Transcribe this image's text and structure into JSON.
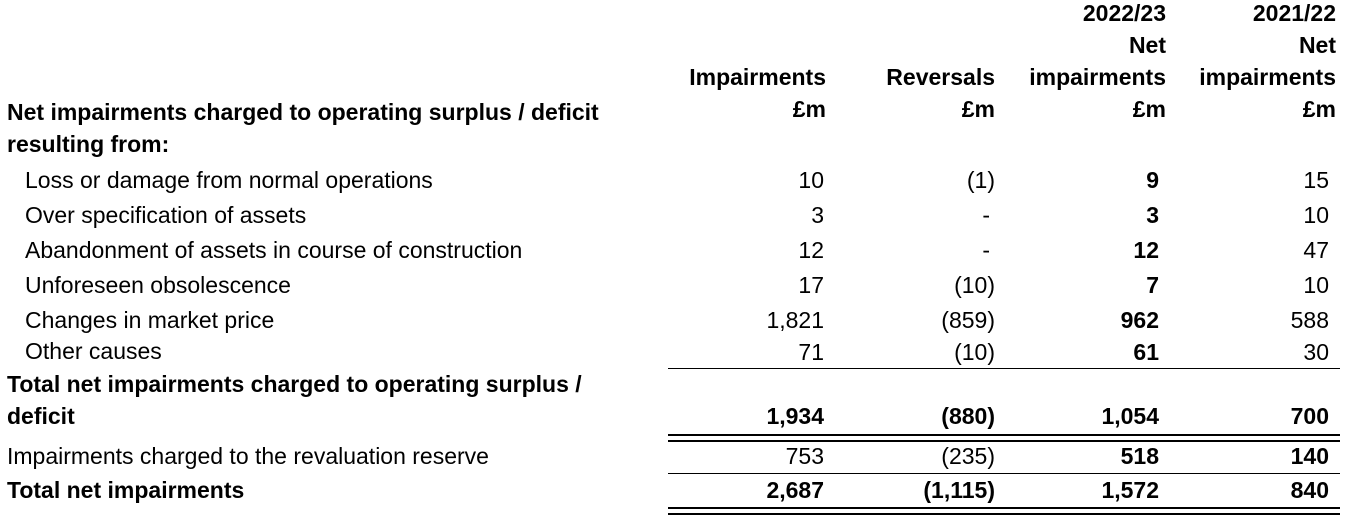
{
  "columns": {
    "impairments": {
      "lines": [
        "Impairments",
        "£m"
      ]
    },
    "reversals": {
      "lines": [
        "Reversals",
        "£m"
      ]
    },
    "net_2022_23": {
      "lines": [
        "2022/23",
        "Net",
        "impairments",
        "£m"
      ]
    },
    "net_2021_22": {
      "lines": [
        "2021/22",
        "Net",
        "impairments",
        "£m"
      ]
    }
  },
  "section_heading": {
    "line1": "Net impairments charged to operating surplus / deficit",
    "line2": "resulting from:"
  },
  "rows": [
    {
      "label": "Loss or damage from normal operations",
      "impairments": "10",
      "reversals": "(1)",
      "net_2022_23": "9",
      "net_2021_22": "15"
    },
    {
      "label": "Over specification of assets",
      "impairments": "3",
      "reversals": "-",
      "net_2022_23": "3",
      "net_2021_22": "10"
    },
    {
      "label": "Abandonment of assets in course of construction",
      "impairments": "12",
      "reversals": "-",
      "net_2022_23": "12",
      "net_2021_22": "47"
    },
    {
      "label": "Unforeseen obsolescence",
      "impairments": "17",
      "reversals": "(10)",
      "net_2022_23": "7",
      "net_2021_22": "10"
    },
    {
      "label": "Changes in market price",
      "impairments": "1,821",
      "reversals": "(859)",
      "net_2022_23": "962",
      "net_2021_22": "588"
    },
    {
      "label": "Other causes",
      "impairments": "71",
      "reversals": "(10)",
      "net_2022_23": "61",
      "net_2021_22": "30"
    }
  ],
  "total_operating": {
    "label_line1": "Total net impairments charged to operating surplus /",
    "label_line2": "deficit",
    "impairments": "1,934",
    "reversals": "(880)",
    "net_2022_23": "1,054",
    "net_2021_22": "700"
  },
  "revaluation": {
    "label": "Impairments charged to the revaluation reserve",
    "impairments": "753",
    "reversals": "(235)",
    "net_2022_23": "518",
    "net_2021_22": "140"
  },
  "total": {
    "label": "Total net impairments",
    "impairments": "2,687",
    "reversals": "(1,115)",
    "net_2022_23": "1,572",
    "net_2021_22": "840"
  }
}
